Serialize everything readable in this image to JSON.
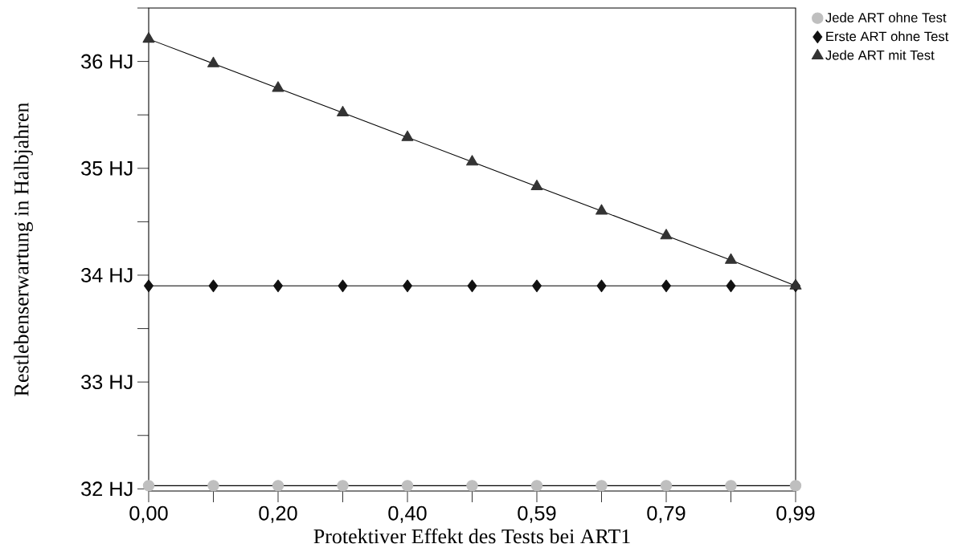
{
  "chart_data": {
    "type": "line",
    "xlabel": "Protektiver Effekt des Tests bei ART1",
    "ylabel": "Restlebenserwartung in Halbjahren",
    "x": [
      0,
      0.099,
      0.198,
      0.297,
      0.396,
      0.495,
      0.594,
      0.693,
      0.792,
      0.891,
      0.99
    ],
    "series": [
      {
        "name": "Jede ART ohne Test",
        "color": "#bfbfbf",
        "marker": "circle",
        "values": [
          32.03,
          32.03,
          32.03,
          32.03,
          32.03,
          32.03,
          32.03,
          32.03,
          32.03,
          32.03,
          32.03
        ]
      },
      {
        "name": "Erste ART ohne Test",
        "color": "#111111",
        "marker": "diamond",
        "values": [
          33.9,
          33.9,
          33.9,
          33.9,
          33.9,
          33.9,
          33.9,
          33.9,
          33.9,
          33.9,
          33.9
        ]
      },
      {
        "name": "Jede ART mit Test",
        "color": "#333333",
        "marker": "triangle",
        "values": [
          36.21,
          35.98,
          35.75,
          35.52,
          35.29,
          35.06,
          34.83,
          34.6,
          34.37,
          34.14,
          33.9
        ]
      }
    ],
    "xlim": [
      0,
      0.99
    ],
    "ylim": [
      31.98,
      36.5
    ],
    "xticks": [
      {
        "value": 0,
        "label": "0,00"
      },
      {
        "value": 0.099,
        "label": null
      },
      {
        "value": 0.198,
        "label": "0,20"
      },
      {
        "value": 0.297,
        "label": null
      },
      {
        "value": 0.396,
        "label": "0,40"
      },
      {
        "value": 0.495,
        "label": null
      },
      {
        "value": 0.594,
        "label": "0,59"
      },
      {
        "value": 0.693,
        "label": null
      },
      {
        "value": 0.792,
        "label": "0,79"
      },
      {
        "value": 0.891,
        "label": null
      },
      {
        "value": 0.99,
        "label": "0,99"
      }
    ],
    "yticks": [
      {
        "value": 32,
        "label": "32 HJ"
      },
      {
        "value": 32.5,
        "label": null
      },
      {
        "value": 33,
        "label": "33 HJ"
      },
      {
        "value": 33.5,
        "label": null
      },
      {
        "value": 34,
        "label": "34 HJ"
      },
      {
        "value": 34.5,
        "label": null
      },
      {
        "value": 35,
        "label": "35 HJ"
      },
      {
        "value": 35.5,
        "label": null
      },
      {
        "value": 36,
        "label": "36 HJ"
      },
      {
        "value": 36.5,
        "label": null
      }
    ],
    "grid": false,
    "legend": "top right",
    "line_style": "solid"
  }
}
